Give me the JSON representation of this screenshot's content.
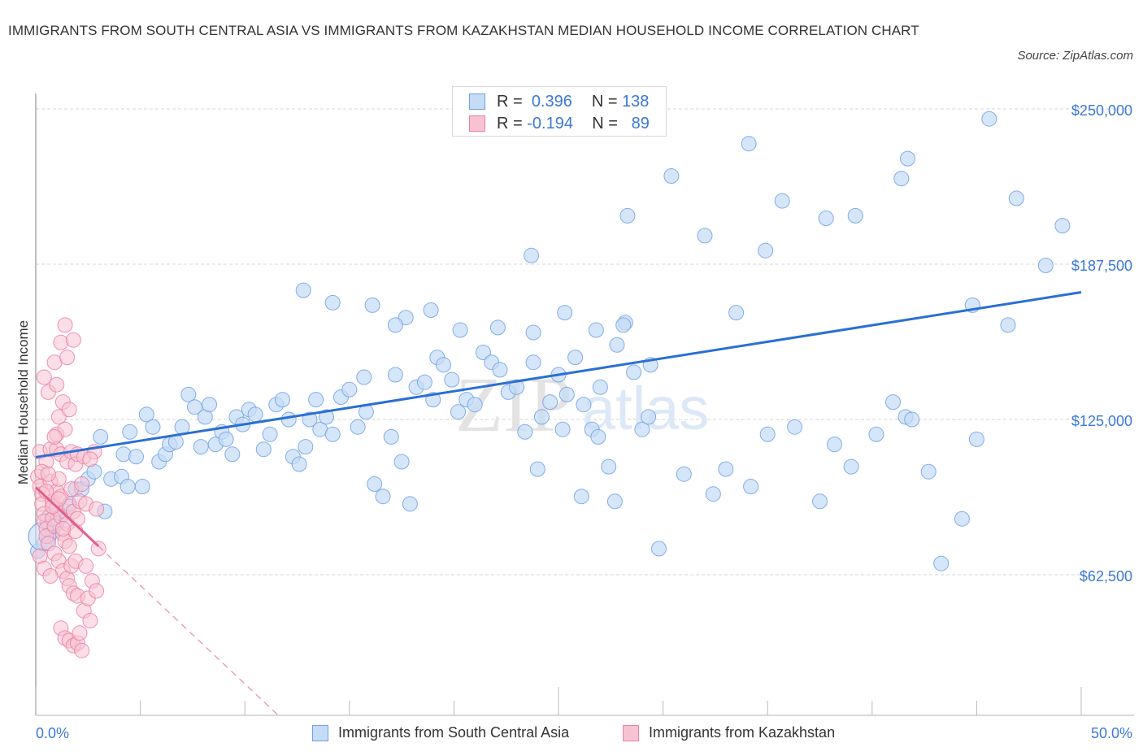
{
  "header": {
    "title": "IMMIGRANTS FROM SOUTH CENTRAL ASIA VS IMMIGRANTS FROM KAZAKHSTAN MEDIAN HOUSEHOLD INCOME CORRELATION CHART",
    "source": "Source: ZipAtlas.com"
  },
  "legend_stats": [
    {
      "r_label": "R =",
      "r_value": "0.396",
      "n_label": "N =",
      "n_value": "138",
      "color": "#a9c8f0"
    },
    {
      "r_label": "R =",
      "r_value": "-0.194",
      "n_label": "N =",
      "n_value": "89",
      "color": "#f7b6c9"
    }
  ],
  "watermark": {
    "zip": "ZIP",
    "atlas": "atlas"
  },
  "chart_data": {
    "type": "scatter",
    "title": "Immigrants from South Central Asia vs Immigrants from Kazakhstan Median Household Income Correlation Chart",
    "xlabel": "",
    "ylabel": "Median Household Income",
    "xlim": [
      0,
      50
    ],
    "ylim": [
      0,
      262500
    ],
    "x_tick_labels": [
      "0.0%",
      "50.0%"
    ],
    "y_ticks": [
      62500,
      125000,
      187500,
      250000
    ],
    "y_tick_labels": [
      "$62,500",
      "$125,000",
      "$187,500",
      "$250,000"
    ],
    "grid": "horizontal-dashed",
    "legend": "bottom-center",
    "series": [
      {
        "name": "Immigrants from South Central Asia",
        "color": "#6fa0e6",
        "fill": "#c5dbf6",
        "R": 0.396,
        "N": 138,
        "trend": {
          "x": [
            0,
            50
          ],
          "y": [
            109800,
            176200
          ],
          "style": "solid"
        },
        "points": [
          [
            0.1,
            72000
          ],
          [
            0.4,
            75000
          ],
          [
            0.6,
            78000
          ],
          [
            0.8,
            80000
          ],
          [
            1.0,
            83000
          ],
          [
            1.2,
            86000
          ],
          [
            1.4,
            88000
          ],
          [
            1.6,
            91000
          ],
          [
            1.9,
            97000
          ],
          [
            2.2,
            97000
          ],
          [
            2.5,
            101000
          ],
          [
            2.8,
            104000
          ],
          [
            3.3,
            88000
          ],
          [
            3.6,
            101000
          ],
          [
            4.1,
            102000
          ],
          [
            4.4,
            98000
          ],
          [
            3.1,
            118000
          ],
          [
            4.2,
            111000
          ],
          [
            4.5,
            120000
          ],
          [
            4.8,
            110000
          ],
          [
            5.1,
            98000
          ],
          [
            5.3,
            127000
          ],
          [
            5.6,
            122000
          ],
          [
            5.9,
            108000
          ],
          [
            6.2,
            111000
          ],
          [
            6.4,
            115000
          ],
          [
            6.7,
            116000
          ],
          [
            7.0,
            122000
          ],
          [
            7.3,
            135000
          ],
          [
            7.6,
            130000
          ],
          [
            7.9,
            114000
          ],
          [
            8.1,
            126000
          ],
          [
            8.3,
            131000
          ],
          [
            8.6,
            115000
          ],
          [
            8.9,
            120000
          ],
          [
            9.1,
            117000
          ],
          [
            9.4,
            111000
          ],
          [
            9.6,
            126000
          ],
          [
            9.9,
            123000
          ],
          [
            10.2,
            129000
          ],
          [
            10.5,
            127000
          ],
          [
            10.9,
            113000
          ],
          [
            11.2,
            119000
          ],
          [
            11.5,
            131000
          ],
          [
            11.8,
            133000
          ],
          [
            12.1,
            125000
          ],
          [
            12.3,
            110000
          ],
          [
            12.6,
            107000
          ],
          [
            12.9,
            114000
          ],
          [
            13.1,
            125000
          ],
          [
            13.4,
            133000
          ],
          [
            13.6,
            121000
          ],
          [
            13.9,
            126000
          ],
          [
            14.2,
            119000
          ],
          [
            14.6,
            134000
          ],
          [
            15.0,
            137000
          ],
          [
            15.4,
            122000
          ],
          [
            15.8,
            128000
          ],
          [
            16.2,
            99000
          ],
          [
            16.6,
            94000
          ],
          [
            17.0,
            118000
          ],
          [
            17.2,
            143000
          ],
          [
            17.5,
            108000
          ],
          [
            17.9,
            91000
          ],
          [
            18.2,
            138000
          ],
          [
            18.6,
            140000
          ],
          [
            19.0,
            133000
          ],
          [
            19.2,
            150000
          ],
          [
            19.5,
            147000
          ],
          [
            19.9,
            141000
          ],
          [
            20.2,
            128000
          ],
          [
            20.6,
            133000
          ],
          [
            21.0,
            131000
          ],
          [
            21.4,
            152000
          ],
          [
            21.8,
            148000
          ],
          [
            22.2,
            145000
          ],
          [
            22.6,
            136000
          ],
          [
            23.0,
            138000
          ],
          [
            23.4,
            120000
          ],
          [
            23.8,
            148000
          ],
          [
            24.2,
            126000
          ],
          [
            24.6,
            132000
          ],
          [
            25.0,
            143000
          ],
          [
            25.4,
            135000
          ],
          [
            25.8,
            150000
          ],
          [
            26.2,
            131000
          ],
          [
            26.6,
            121000
          ],
          [
            27.0,
            138000
          ],
          [
            27.4,
            106000
          ],
          [
            27.8,
            155000
          ],
          [
            28.2,
            164000
          ],
          [
            28.6,
            144000
          ],
          [
            29.0,
            121000
          ],
          [
            29.3,
            126000
          ],
          [
            12.8,
            177000
          ],
          [
            14.2,
            172000
          ],
          [
            16.1,
            171000
          ],
          [
            17.7,
            166000
          ],
          [
            18.9,
            169000
          ],
          [
            20.3,
            161000
          ],
          [
            22.1,
            162000
          ],
          [
            23.8,
            160000
          ],
          [
            25.3,
            168000
          ],
          [
            26.8,
            161000
          ],
          [
            28.1,
            163000
          ],
          [
            29.4,
            147000
          ],
          [
            24.0,
            105000
          ],
          [
            25.2,
            121000
          ],
          [
            26.1,
            94000
          ],
          [
            26.9,
            118000
          ],
          [
            27.7,
            92000
          ],
          [
            29.8,
            73000
          ],
          [
            31.0,
            103000
          ],
          [
            32.4,
            95000
          ],
          [
            33.0,
            105000
          ],
          [
            34.2,
            98000
          ],
          [
            35.0,
            119000
          ],
          [
            36.3,
            122000
          ],
          [
            37.5,
            92000
          ],
          [
            38.2,
            115000
          ],
          [
            39.0,
            106000
          ],
          [
            40.2,
            119000
          ],
          [
            41.0,
            132000
          ],
          [
            41.6,
            126000
          ],
          [
            41.9,
            125000
          ],
          [
            42.7,
            104000
          ],
          [
            43.3,
            67000
          ],
          [
            44.3,
            85000
          ],
          [
            45.0,
            117000
          ],
          [
            46.5,
            163000
          ],
          [
            44.8,
            171000
          ],
          [
            33.5,
            168000
          ],
          [
            23.7,
            191000
          ],
          [
            28.3,
            207000
          ],
          [
            30.4,
            223000
          ],
          [
            32.0,
            199000
          ],
          [
            34.9,
            193000
          ],
          [
            35.7,
            213000
          ],
          [
            37.8,
            206000
          ],
          [
            39.2,
            207000
          ],
          [
            41.4,
            222000
          ],
          [
            46.9,
            214000
          ],
          [
            49.1,
            203000
          ],
          [
            48.3,
            187000
          ],
          [
            34.1,
            236000
          ],
          [
            41.7,
            230000
          ],
          [
            45.6,
            246000
          ],
          [
            17.2,
            163000
          ],
          [
            15.7,
            142000
          ]
        ]
      },
      {
        "name": "Immigrants from Kazakhstan",
        "color": "#ec7fa0",
        "fill": "#f7c3d3",
        "R": -0.194,
        "N": 89,
        "trend": {
          "x": [
            0,
            3,
            11.6
          ],
          "y": [
            97700,
            74000,
            6000
          ],
          "style": "solid-then-dashed"
        },
        "points": [
          [
            0.1,
            102000
          ],
          [
            0.2,
            98000
          ],
          [
            0.3,
            95000
          ],
          [
            0.3,
            91000
          ],
          [
            0.4,
            87000
          ],
          [
            0.4,
            84000
          ],
          [
            0.5,
            81000
          ],
          [
            0.5,
            78000
          ],
          [
            0.6,
            75000
          ],
          [
            0.7,
            100000
          ],
          [
            0.8,
            92000
          ],
          [
            0.8,
            85000
          ],
          [
            0.9,
            82000
          ],
          [
            1.0,
            89000
          ],
          [
            1.0,
            96000
          ],
          [
            1.1,
            101000
          ],
          [
            1.2,
            94000
          ],
          [
            1.2,
            86000
          ],
          [
            1.3,
            79000
          ],
          [
            1.4,
            76000
          ],
          [
            1.5,
            83000
          ],
          [
            1.6,
            90000
          ],
          [
            1.7,
            97000
          ],
          [
            1.8,
            88000
          ],
          [
            1.9,
            80000
          ],
          [
            2.0,
            85000
          ],
          [
            2.1,
            92000
          ],
          [
            2.2,
            99000
          ],
          [
            2.4,
            91000
          ],
          [
            0.2,
            112000
          ],
          [
            0.5,
            108000
          ],
          [
            0.7,
            113000
          ],
          [
            1.0,
            113000
          ],
          [
            1.2,
            111000
          ],
          [
            1.5,
            108000
          ],
          [
            1.7,
            112000
          ],
          [
            1.9,
            107000
          ],
          [
            2.0,
            111000
          ],
          [
            2.3,
            110000
          ],
          [
            2.8,
            112000
          ],
          [
            1.1,
            126000
          ],
          [
            1.3,
            132000
          ],
          [
            1.6,
            129000
          ],
          [
            0.4,
            142000
          ],
          [
            0.6,
            136000
          ],
          [
            0.9,
            148000
          ],
          [
            1.0,
            139000
          ],
          [
            1.2,
            156000
          ],
          [
            1.5,
            150000
          ],
          [
            1.4,
            163000
          ],
          [
            1.8,
            157000
          ],
          [
            0.3,
            104000
          ],
          [
            0.6,
            103000
          ],
          [
            0.9,
            71000
          ],
          [
            1.1,
            68000
          ],
          [
            1.3,
            64000
          ],
          [
            1.5,
            61000
          ],
          [
            1.7,
            66000
          ],
          [
            1.9,
            68000
          ],
          [
            1.6,
            58000
          ],
          [
            1.8,
            55000
          ],
          [
            2.0,
            54000
          ],
          [
            2.3,
            48000
          ],
          [
            2.5,
            53000
          ],
          [
            2.7,
            60000
          ],
          [
            2.9,
            56000
          ],
          [
            2.4,
            66000
          ],
          [
            3.0,
            73000
          ],
          [
            1.2,
            41000
          ],
          [
            1.4,
            37000
          ],
          [
            1.6,
            36000
          ],
          [
            1.8,
            34000
          ],
          [
            2.0,
            35000
          ],
          [
            2.1,
            39000
          ],
          [
            2.2,
            32000
          ],
          [
            2.6,
            44000
          ],
          [
            1.0,
            119000
          ],
          [
            0.5,
            96000
          ],
          [
            0.8,
            90000
          ],
          [
            1.1,
            93000
          ],
          [
            1.3,
            81000
          ],
          [
            1.6,
            74000
          ],
          [
            0.2,
            70000
          ],
          [
            0.4,
            65000
          ],
          [
            0.7,
            62000
          ],
          [
            2.9,
            89000
          ],
          [
            2.6,
            109000
          ],
          [
            1.4,
            121000
          ],
          [
            0.9,
            118000
          ]
        ]
      }
    ]
  },
  "bottom_legend": [
    {
      "label": "Immigrants from South Central Asia"
    },
    {
      "label": "Immigrants from Kazakhstan"
    }
  ]
}
